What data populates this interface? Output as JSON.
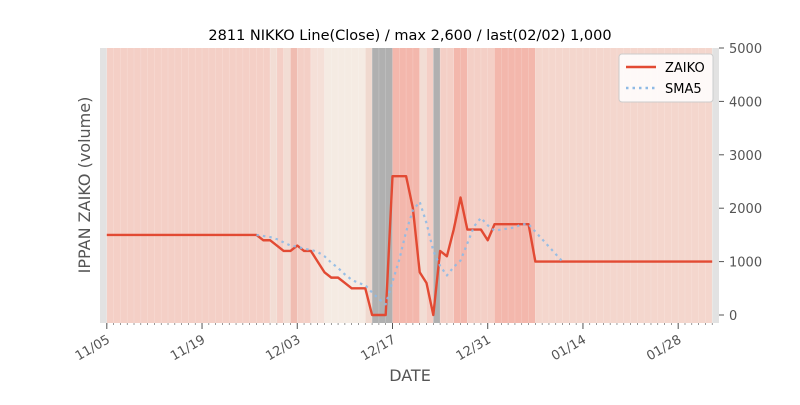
{
  "chart_data": {
    "type": "line",
    "title": "2811 NIKKO Line(Close) / max 2,600 / last(02/02) 1,000",
    "xlabel": "DATE",
    "ylabel": "IPPAN ZAIKO (volume)",
    "y_axis_side": "right",
    "ylim": [
      0,
      5000
    ],
    "yticks": [
      "0",
      "1000",
      "2000",
      "3000",
      "4000",
      "5000"
    ],
    "x_range": [
      "2018-11-04",
      "2019-02-03"
    ],
    "xticks": [
      {
        "date": "2018-11-05",
        "label": "11/05"
      },
      {
        "date": "2018-11-19",
        "label": "11/19"
      },
      {
        "date": "2018-12-03",
        "label": "12/03"
      },
      {
        "date": "2018-12-17",
        "label": "12/17"
      },
      {
        "date": "2018-12-31",
        "label": "12/31"
      },
      {
        "date": "2019-01-14",
        "label": "01/14"
      },
      {
        "date": "2019-01-28",
        "label": "01/28"
      }
    ],
    "grid": false,
    "legend_position": "top-right",
    "series": [
      {
        "name": "ZAIKO",
        "color": "#E24A33",
        "style": "solid",
        "points": [
          [
            "2018-11-05",
            1500
          ],
          [
            "2018-11-27",
            1500
          ],
          [
            "2018-11-28",
            1400
          ],
          [
            "2018-11-29",
            1400
          ],
          [
            "2018-11-30",
            1300
          ],
          [
            "2018-12-01",
            1200
          ],
          [
            "2018-12-02",
            1200
          ],
          [
            "2018-12-03",
            1300
          ],
          [
            "2018-12-04",
            1200
          ],
          [
            "2018-12-05",
            1200
          ],
          [
            "2018-12-06",
            1000
          ],
          [
            "2018-12-07",
            800
          ],
          [
            "2018-12-08",
            700
          ],
          [
            "2018-12-09",
            700
          ],
          [
            "2018-12-10",
            600
          ],
          [
            "2018-12-11",
            500
          ],
          [
            "2018-12-12",
            500
          ],
          [
            "2018-12-13",
            500
          ],
          [
            "2018-12-14",
            0
          ],
          [
            "2018-12-15",
            0
          ],
          [
            "2018-12-16",
            0
          ],
          [
            "2018-12-17",
            2600
          ],
          [
            "2018-12-18",
            2600
          ],
          [
            "2018-12-19",
            2600
          ],
          [
            "2018-12-20",
            2000
          ],
          [
            "2018-12-21",
            800
          ],
          [
            "2018-12-22",
            600
          ],
          [
            "2018-12-23",
            0
          ],
          [
            "2018-12-24",
            1200
          ],
          [
            "2018-12-25",
            1100
          ],
          [
            "2018-12-26",
            1600
          ],
          [
            "2018-12-27",
            2200
          ],
          [
            "2018-12-28",
            1600
          ],
          [
            "2018-12-29",
            1600
          ],
          [
            "2018-12-30",
            1600
          ],
          [
            "2018-12-31",
            1400
          ],
          [
            "2019-01-01",
            1700
          ],
          [
            "2019-01-06",
            1700
          ],
          [
            "2019-01-07",
            1000
          ],
          [
            "2019-02-02",
            1000
          ]
        ]
      },
      {
        "name": "SMA5",
        "color": "#8EBAE5",
        "style": "dotted",
        "points": [
          [
            "2018-11-27",
            1500
          ],
          [
            "2018-11-28",
            1480
          ],
          [
            "2018-11-29",
            1460
          ],
          [
            "2018-11-30",
            1420
          ],
          [
            "2018-12-01",
            1360
          ],
          [
            "2018-12-02",
            1300
          ],
          [
            "2018-12-03",
            1280
          ],
          [
            "2018-12-04",
            1240
          ],
          [
            "2018-12-05",
            1220
          ],
          [
            "2018-12-06",
            1180
          ],
          [
            "2018-12-07",
            1100
          ],
          [
            "2018-12-08",
            980
          ],
          [
            "2018-12-09",
            880
          ],
          [
            "2018-12-10",
            760
          ],
          [
            "2018-12-11",
            660
          ],
          [
            "2018-12-12",
            600
          ],
          [
            "2018-12-13",
            560
          ],
          [
            "2018-12-14",
            420
          ],
          [
            "2018-12-15",
            300
          ],
          [
            "2018-12-16",
            200
          ],
          [
            "2018-12-17",
            620
          ],
          [
            "2018-12-18",
            1040
          ],
          [
            "2018-12-19",
            1560
          ],
          [
            "2018-12-20",
            1960
          ],
          [
            "2018-12-21",
            2120
          ],
          [
            "2018-12-22",
            1720
          ],
          [
            "2018-12-23",
            1200
          ],
          [
            "2018-12-24",
            920
          ],
          [
            "2018-12-25",
            740
          ],
          [
            "2018-12-26",
            900
          ],
          [
            "2018-12-27",
            1020
          ],
          [
            "2018-12-28",
            1340
          ],
          [
            "2018-12-29",
            1660
          ],
          [
            "2018-12-30",
            1820
          ],
          [
            "2018-12-31",
            1680
          ],
          [
            "2019-01-01",
            1580
          ],
          [
            "2019-01-02",
            1600
          ],
          [
            "2019-01-03",
            1620
          ],
          [
            "2019-01-04",
            1640
          ],
          [
            "2019-01-05",
            1700
          ],
          [
            "2019-01-06",
            1700
          ],
          [
            "2019-01-07",
            1560
          ],
          [
            "2019-01-08",
            1420
          ],
          [
            "2019-01-09",
            1280
          ],
          [
            "2019-01-10",
            1140
          ],
          [
            "2019-01-11",
            1000
          ]
        ]
      }
    ],
    "background_bands": [
      {
        "from": "2018-11-04",
        "to": "2018-11-05",
        "color": "#e2e2e2"
      },
      {
        "from": "2018-11-05",
        "to": "2018-11-29",
        "color": "#f4cfc6"
      },
      {
        "from": "2018-11-29",
        "to": "2018-11-30",
        "color": "#f2ddd4"
      },
      {
        "from": "2018-11-30",
        "to": "2018-12-01",
        "color": "#f4cfc6"
      },
      {
        "from": "2018-12-01",
        "to": "2018-12-02",
        "color": "#f2ddd4"
      },
      {
        "from": "2018-12-02",
        "to": "2018-12-03",
        "color": "#f0bcb1"
      },
      {
        "from": "2018-12-03",
        "to": "2018-12-05",
        "color": "#f4cfc6"
      },
      {
        "from": "2018-12-05",
        "to": "2018-12-07",
        "color": "#f5e0d8"
      },
      {
        "from": "2018-12-07",
        "to": "2018-12-13",
        "color": "#f5ebe3"
      },
      {
        "from": "2018-12-13",
        "to": "2018-12-14",
        "color": "#f0d9cf"
      },
      {
        "from": "2018-12-14",
        "to": "2018-12-17",
        "color": "#b0b0b0"
      },
      {
        "from": "2018-12-17",
        "to": "2018-12-21",
        "color": "#f3b7ac"
      },
      {
        "from": "2018-12-21",
        "to": "2018-12-22",
        "color": "#f2ddd4"
      },
      {
        "from": "2018-12-22",
        "to": "2018-12-23",
        "color": "#f4cfc6"
      },
      {
        "from": "2018-12-23",
        "to": "2018-12-24",
        "color": "#b0b0b0"
      },
      {
        "from": "2018-12-24",
        "to": "2018-12-26",
        "color": "#f4cfc6"
      },
      {
        "from": "2018-12-26",
        "to": "2018-12-28",
        "color": "#f3b7ac"
      },
      {
        "from": "2018-12-28",
        "to": "2019-01-01",
        "color": "#f4cfc6"
      },
      {
        "from": "2019-01-01",
        "to": "2019-01-07",
        "color": "#f3b7ac"
      },
      {
        "from": "2019-01-07",
        "to": "2019-02-02",
        "color": "#f4d6cd"
      },
      {
        "from": "2019-02-02",
        "to": "2019-02-03",
        "color": "#e2e2e2"
      }
    ]
  }
}
